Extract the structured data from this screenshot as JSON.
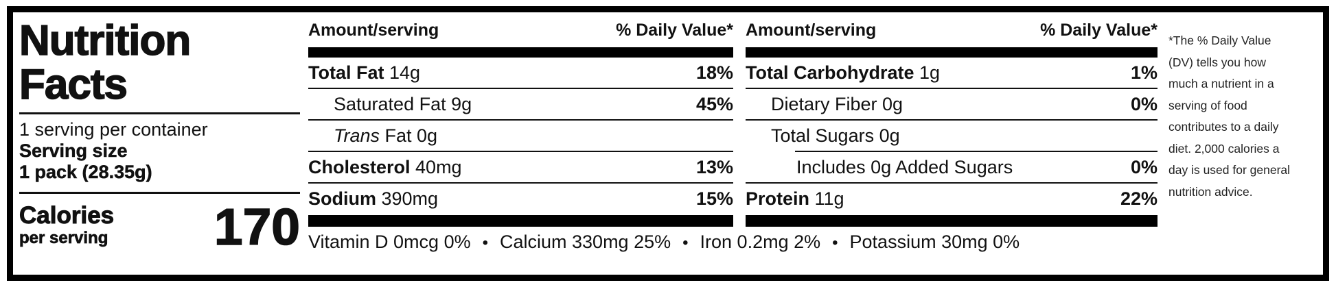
{
  "label": {
    "title": "Nutrition\nFacts",
    "servings_per_container": "1 serving per container",
    "serving_size_label": "Serving size",
    "serving_size_value": "1 pack (28.35g)",
    "calories_label": "Calories",
    "calories_sub": "per serving",
    "calories_value": "170"
  },
  "columns": [
    {
      "header_amount": "Amount/serving",
      "header_dv": "% Daily Value*",
      "rows": [
        {
          "bold": "Total Fat",
          "rest": " 14g",
          "pct": "18%"
        },
        {
          "rest": "Saturated Fat 9g",
          "pct": "45%"
        },
        {
          "italic": "Trans",
          "rest": " Fat 0g",
          "pct": ""
        },
        {
          "bold": "Cholesterol",
          "rest": " 40mg",
          "pct": "13%"
        },
        {
          "bold": "Sodium",
          "rest": " 390mg",
          "pct": "15%"
        }
      ]
    },
    {
      "header_amount": "Amount/serving",
      "header_dv": "% Daily Value*",
      "rows": [
        {
          "bold": "Total Carbohydrate",
          "rest": " 1g",
          "pct": "1%"
        },
        {
          "rest": "Dietary Fiber 0g",
          "pct": "0%"
        },
        {
          "rest": "Total Sugars 0g",
          "pct": ""
        },
        {
          "rest": "Includes 0g Added Sugars",
          "pct": "0%"
        },
        {
          "bold": "Protein",
          "rest": " 11g",
          "pct": "22%"
        }
      ]
    }
  ],
  "vitamins": {
    "separator": "•",
    "items": [
      "Vitamin D 0mcg 0%",
      "Calcium 330mg 25%",
      "Iron 0.2mg 2%",
      "Potassium 30mg 0%"
    ]
  },
  "footnote": "*The % Daily Value\n(DV) tells you how\nmuch a nutrient in a\nserving of food\ncontributes to a daily\ndiet. 2,000 calories a\nday is used for general\nnutrition advice.",
  "colors": {
    "ink": "#111111",
    "bar": "#000000",
    "background": "#ffffff"
  }
}
